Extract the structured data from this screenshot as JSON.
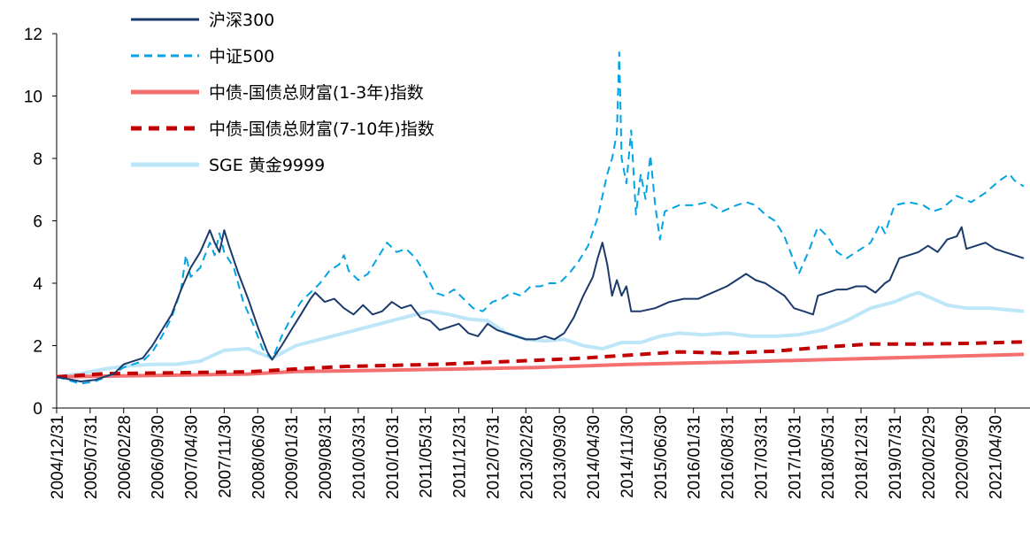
{
  "chart_data": {
    "type": "line",
    "title": "",
    "xlabel": "",
    "ylabel": "",
    "ylim": [
      0,
      12
    ],
    "y_ticks": [
      0,
      2,
      4,
      6,
      8,
      10,
      12
    ],
    "x_tick_labels": [
      "2004/12/31",
      "2005/07/31",
      "2006/02/28",
      "2006/09/30",
      "2007/04/30",
      "2007/11/30",
      "2008/06/30",
      "2009/01/31",
      "2009/08/31",
      "2010/03/31",
      "2010/10/31",
      "2011/05/31",
      "2011/12/31",
      "2012/07/31",
      "2013/02/28",
      "2013/09/30",
      "2014/04/30",
      "2014/11/30",
      "2015/06/30",
      "2016/01/31",
      "2016/08/31",
      "2017/03/31",
      "2017/10/31",
      "2018/05/31",
      "2018/12/31",
      "2019/07/31",
      "2020/02/29",
      "2020/09/30",
      "2021/04/30"
    ],
    "x_range": [
      0,
      202
    ],
    "legend_position": "top-left",
    "series": [
      {
        "name": "沪深300",
        "color": "#1b3a6b",
        "style": "solid",
        "points": [
          [
            0,
            1.0
          ],
          [
            5,
            0.85
          ],
          [
            8,
            0.9
          ],
          [
            12,
            1.1
          ],
          [
            14,
            1.4
          ],
          [
            16,
            1.5
          ],
          [
            18,
            1.6
          ],
          [
            20,
            2.0
          ],
          [
            22,
            2.5
          ],
          [
            24,
            3.0
          ],
          [
            26,
            3.8
          ],
          [
            28,
            4.5
          ],
          [
            30,
            5.0
          ],
          [
            32,
            5.7
          ],
          [
            33,
            5.3
          ],
          [
            34,
            5.0
          ],
          [
            35,
            5.7
          ],
          [
            36,
            5.2
          ],
          [
            38,
            4.3
          ],
          [
            40,
            3.5
          ],
          [
            42,
            2.6
          ],
          [
            44,
            1.8
          ],
          [
            45,
            1.55
          ],
          [
            47,
            2.0
          ],
          [
            49,
            2.5
          ],
          [
            51,
            3.0
          ],
          [
            53,
            3.5
          ],
          [
            54,
            3.7
          ],
          [
            56,
            3.4
          ],
          [
            58,
            3.5
          ],
          [
            60,
            3.2
          ],
          [
            62,
            3.0
          ],
          [
            64,
            3.3
          ],
          [
            66,
            3.0
          ],
          [
            68,
            3.1
          ],
          [
            70,
            3.4
          ],
          [
            72,
            3.2
          ],
          [
            74,
            3.3
          ],
          [
            76,
            2.9
          ],
          [
            78,
            2.8
          ],
          [
            80,
            2.5
          ],
          [
            82,
            2.6
          ],
          [
            84,
            2.7
          ],
          [
            86,
            2.4
          ],
          [
            88,
            2.3
          ],
          [
            90,
            2.7
          ],
          [
            92,
            2.5
          ],
          [
            94,
            2.4
          ],
          [
            96,
            2.3
          ],
          [
            98,
            2.2
          ],
          [
            100,
            2.2
          ],
          [
            102,
            2.3
          ],
          [
            104,
            2.2
          ],
          [
            106,
            2.4
          ],
          [
            108,
            2.9
          ],
          [
            110,
            3.6
          ],
          [
            112,
            4.2
          ],
          [
            113,
            4.8
          ],
          [
            114,
            5.3
          ],
          [
            115,
            4.6
          ],
          [
            116,
            3.6
          ],
          [
            117,
            4.1
          ],
          [
            118,
            3.6
          ],
          [
            119,
            3.9
          ],
          [
            120,
            3.1
          ],
          [
            122,
            3.1
          ],
          [
            125,
            3.2
          ],
          [
            128,
            3.4
          ],
          [
            131,
            3.5
          ],
          [
            134,
            3.5
          ],
          [
            137,
            3.7
          ],
          [
            140,
            3.9
          ],
          [
            142,
            4.1
          ],
          [
            144,
            4.3
          ],
          [
            146,
            4.1
          ],
          [
            148,
            4.0
          ],
          [
            150,
            3.8
          ],
          [
            152,
            3.6
          ],
          [
            154,
            3.2
          ],
          [
            156,
            3.1
          ],
          [
            158,
            3.0
          ],
          [
            159,
            3.6
          ],
          [
            161,
            3.7
          ],
          [
            163,
            3.8
          ],
          [
            165,
            3.8
          ],
          [
            167,
            3.9
          ],
          [
            169,
            3.9
          ],
          [
            171,
            3.7
          ],
          [
            173,
            4.0
          ],
          [
            174,
            4.1
          ],
          [
            176,
            4.8
          ],
          [
            178,
            4.9
          ],
          [
            180,
            5.0
          ],
          [
            182,
            5.2
          ],
          [
            184,
            5.0
          ],
          [
            186,
            5.4
          ],
          [
            188,
            5.5
          ],
          [
            189,
            5.8
          ],
          [
            190,
            5.1
          ],
          [
            192,
            5.2
          ],
          [
            194,
            5.3
          ],
          [
            196,
            5.1
          ],
          [
            198,
            5.0
          ],
          [
            200,
            4.9
          ],
          [
            202,
            4.8
          ]
        ]
      },
      {
        "name": "中证500",
        "color": "#00a4e4",
        "style": "dashed",
        "points": [
          [
            0,
            1.0
          ],
          [
            5,
            0.78
          ],
          [
            8,
            0.85
          ],
          [
            12,
            1.1
          ],
          [
            14,
            1.3
          ],
          [
            16,
            1.4
          ],
          [
            18,
            1.5
          ],
          [
            20,
            1.8
          ],
          [
            22,
            2.3
          ],
          [
            24,
            2.9
          ],
          [
            26,
            3.8
          ],
          [
            27,
            4.9
          ],
          [
            28,
            4.2
          ],
          [
            30,
            4.5
          ],
          [
            32,
            5.3
          ],
          [
            33,
            4.9
          ],
          [
            34,
            5.6
          ],
          [
            35,
            5.0
          ],
          [
            37,
            4.5
          ],
          [
            39,
            3.4
          ],
          [
            41,
            2.7
          ],
          [
            43,
            1.9
          ],
          [
            45,
            1.55
          ],
          [
            47,
            2.3
          ],
          [
            49,
            2.9
          ],
          [
            51,
            3.4
          ],
          [
            53,
            3.7
          ],
          [
            55,
            4.0
          ],
          [
            57,
            4.4
          ],
          [
            59,
            4.6
          ],
          [
            60,
            4.9
          ],
          [
            61,
            4.4
          ],
          [
            63,
            4.1
          ],
          [
            65,
            4.3
          ],
          [
            67,
            4.8
          ],
          [
            69,
            5.3
          ],
          [
            71,
            5.0
          ],
          [
            73,
            5.1
          ],
          [
            75,
            4.8
          ],
          [
            77,
            4.3
          ],
          [
            79,
            3.7
          ],
          [
            81,
            3.6
          ],
          [
            83,
            3.8
          ],
          [
            85,
            3.5
          ],
          [
            87,
            3.2
          ],
          [
            89,
            3.1
          ],
          [
            91,
            3.4
          ],
          [
            93,
            3.5
          ],
          [
            95,
            3.7
          ],
          [
            97,
            3.6
          ],
          [
            99,
            3.9
          ],
          [
            101,
            3.9
          ],
          [
            103,
            4.0
          ],
          [
            105,
            4.0
          ],
          [
            107,
            4.3
          ],
          [
            109,
            4.7
          ],
          [
            111,
            5.2
          ],
          [
            113,
            6.1
          ],
          [
            115,
            7.5
          ],
          [
            116,
            8.0
          ],
          [
            117,
            8.8
          ],
          [
            117.5,
            11.4
          ],
          [
            118,
            8.0
          ],
          [
            119,
            7.2
          ],
          [
            120,
            8.9
          ],
          [
            121,
            6.2
          ],
          [
            122,
            7.5
          ],
          [
            123,
            6.7
          ],
          [
            124,
            8.1
          ],
          [
            125,
            6.5
          ],
          [
            126,
            5.4
          ],
          [
            127,
            6.3
          ],
          [
            130,
            6.5
          ],
          [
            133,
            6.5
          ],
          [
            136,
            6.6
          ],
          [
            139,
            6.3
          ],
          [
            142,
            6.5
          ],
          [
            144,
            6.6
          ],
          [
            146,
            6.5
          ],
          [
            148,
            6.2
          ],
          [
            150,
            6.0
          ],
          [
            152,
            5.5
          ],
          [
            154,
            4.7
          ],
          [
            155,
            4.3
          ],
          [
            157,
            5.0
          ],
          [
            159,
            5.8
          ],
          [
            161,
            5.5
          ],
          [
            163,
            5.0
          ],
          [
            165,
            4.8
          ],
          [
            167,
            5.0
          ],
          [
            170,
            5.3
          ],
          [
            172,
            5.9
          ],
          [
            173,
            5.6
          ],
          [
            175,
            6.5
          ],
          [
            178,
            6.6
          ],
          [
            181,
            6.5
          ],
          [
            183,
            6.3
          ],
          [
            185,
            6.4
          ],
          [
            188,
            6.8
          ],
          [
            191,
            6.6
          ],
          [
            194,
            6.9
          ],
          [
            197,
            7.3
          ],
          [
            199,
            7.5
          ],
          [
            200,
            7.3
          ],
          [
            202,
            7.1
          ]
        ]
      },
      {
        "name": "中债-国债总财富(1-3年)指数",
        "color": "#f47070",
        "style": "solid-thick",
        "points": [
          [
            0,
            1.0
          ],
          [
            20,
            1.04
          ],
          [
            40,
            1.09
          ],
          [
            50,
            1.17
          ],
          [
            60,
            1.19
          ],
          [
            80,
            1.24
          ],
          [
            100,
            1.3
          ],
          [
            120,
            1.4
          ],
          [
            140,
            1.47
          ],
          [
            160,
            1.55
          ],
          [
            180,
            1.63
          ],
          [
            202,
            1.72
          ]
        ]
      },
      {
        "name": "中债-国债总财富(7-10年)指数",
        "color": "#c00000",
        "style": "dashed-thick",
        "points": [
          [
            0,
            1.0
          ],
          [
            10,
            1.1
          ],
          [
            20,
            1.12
          ],
          [
            30,
            1.14
          ],
          [
            40,
            1.16
          ],
          [
            50,
            1.25
          ],
          [
            60,
            1.33
          ],
          [
            80,
            1.4
          ],
          [
            100,
            1.53
          ],
          [
            110,
            1.6
          ],
          [
            120,
            1.7
          ],
          [
            130,
            1.8
          ],
          [
            140,
            1.76
          ],
          [
            150,
            1.82
          ],
          [
            160,
            1.95
          ],
          [
            170,
            2.05
          ],
          [
            180,
            2.05
          ],
          [
            190,
            2.07
          ],
          [
            202,
            2.12
          ]
        ]
      },
      {
        "name": "SGE 黄金9999",
        "color": "#bde6f8",
        "style": "solid-thick",
        "points": [
          [
            0,
            1.0
          ],
          [
            5,
            1.1
          ],
          [
            10,
            1.25
          ],
          [
            15,
            1.35
          ],
          [
            20,
            1.4
          ],
          [
            25,
            1.4
          ],
          [
            30,
            1.5
          ],
          [
            35,
            1.85
          ],
          [
            40,
            1.9
          ],
          [
            45,
            1.6
          ],
          [
            50,
            2.0
          ],
          [
            55,
            2.2
          ],
          [
            60,
            2.4
          ],
          [
            65,
            2.6
          ],
          [
            70,
            2.8
          ],
          [
            75,
            3.0
          ],
          [
            78,
            3.1
          ],
          [
            82,
            3.0
          ],
          [
            86,
            2.85
          ],
          [
            90,
            2.8
          ],
          [
            94,
            2.4
          ],
          [
            98,
            2.2
          ],
          [
            102,
            2.15
          ],
          [
            106,
            2.2
          ],
          [
            110,
            2.0
          ],
          [
            114,
            1.9
          ],
          [
            118,
            2.1
          ],
          [
            122,
            2.1
          ],
          [
            126,
            2.3
          ],
          [
            130,
            2.4
          ],
          [
            135,
            2.35
          ],
          [
            140,
            2.4
          ],
          [
            145,
            2.3
          ],
          [
            150,
            2.3
          ],
          [
            155,
            2.35
          ],
          [
            160,
            2.5
          ],
          [
            165,
            2.8
          ],
          [
            170,
            3.2
          ],
          [
            175,
            3.4
          ],
          [
            178,
            3.6
          ],
          [
            180,
            3.7
          ],
          [
            183,
            3.5
          ],
          [
            186,
            3.3
          ],
          [
            190,
            3.2
          ],
          [
            195,
            3.2
          ],
          [
            202,
            3.1
          ]
        ]
      }
    ]
  }
}
